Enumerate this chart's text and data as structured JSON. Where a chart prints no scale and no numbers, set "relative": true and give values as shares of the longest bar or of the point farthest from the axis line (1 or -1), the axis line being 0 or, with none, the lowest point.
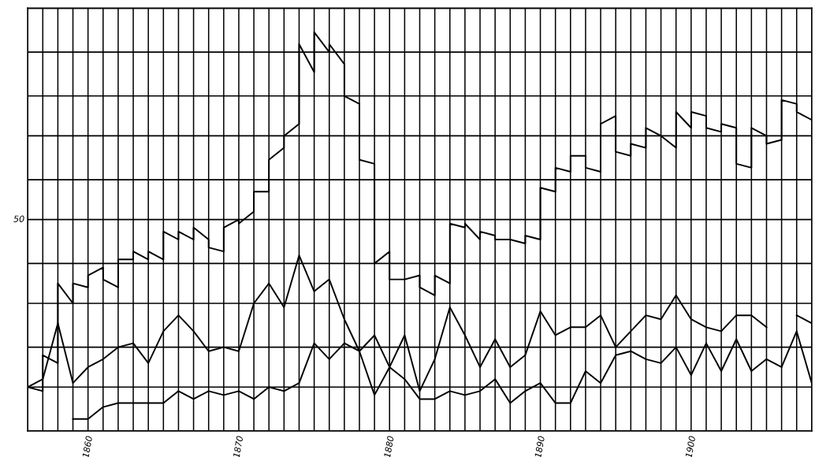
{
  "chart_data": {
    "type": "line",
    "relative": true,
    "grid": "x",
    "xlim": [
      1856,
      1908
    ],
    "annotations": [
      "50"
    ],
    "xticks": [
      {
        "value": 1856,
        "label": null
      },
      {
        "value": 1857,
        "label": null
      },
      {
        "value": 1858,
        "label": null
      },
      {
        "value": 1859,
        "label": null
      },
      1860,
      {
        "value": 1861,
        "label": null
      },
      {
        "value": 1862,
        "label": null
      },
      {
        "value": 1863,
        "label": null
      },
      {
        "value": 1864,
        "label": null
      },
      {
        "value": 1865,
        "label": null
      },
      {
        "value": 1866,
        "label": null
      },
      {
        "value": 1867,
        "label": null
      },
      {
        "value": 1868,
        "label": null
      },
      {
        "value": 1869,
        "label": null
      },
      1870,
      {
        "value": 1871,
        "label": null
      },
      {
        "value": 1872,
        "label": null
      },
      {
        "value": 1873,
        "label": null
      },
      {
        "value": 1874,
        "label": null
      },
      {
        "value": 1875,
        "label": null
      },
      {
        "value": 1876,
        "label": null
      },
      {
        "value": 1877,
        "label": null
      },
      {
        "value": 1878,
        "label": null
      },
      {
        "value": 1879,
        "label": null
      },
      1880,
      {
        "value": 1881,
        "label": null
      },
      {
        "value": 1882,
        "label": null
      },
      {
        "value": 1883,
        "label": null
      },
      {
        "value": 1884,
        "label": null
      },
      {
        "value": 1885,
        "label": null
      },
      {
        "value": 1886,
        "label": null
      },
      {
        "value": 1887,
        "label": null
      },
      {
        "value": 1888,
        "label": null
      },
      {
        "value": 1889,
        "label": null
      },
      1890,
      {
        "value": 1891,
        "label": null
      },
      {
        "value": 1892,
        "label": null
      },
      {
        "value": 1893,
        "label": null
      },
      {
        "value": 1894,
        "label": null
      },
      {
        "value": 1895,
        "label": null
      },
      {
        "value": 1896,
        "label": null
      },
      {
        "value": 1897,
        "label": null
      },
      {
        "value": 1898,
        "label": null
      },
      {
        "value": 1899,
        "label": null
      },
      1900,
      {
        "value": 1901,
        "label": null
      },
      {
        "value": 1902,
        "label": null
      },
      {
        "value": 1903,
        "label": null
      },
      {
        "value": 1904,
        "label": null
      },
      {
        "value": 1905,
        "label": null
      },
      {
        "value": 1906,
        "label": null
      },
      {
        "value": 1907,
        "label": null
      },
      {
        "value": 1908,
        "label": null
      }
    ],
    "ref_lines": [
      {
        "axis": "y",
        "value": 0.11
      },
      {
        "axis": "y",
        "value": 0.21
      },
      {
        "axis": "y",
        "value": 0.32
      },
      {
        "axis": "y",
        "value": 0.42
      },
      {
        "axis": "y",
        "value": 0.53
      },
      {
        "axis": "y",
        "value": 0.63
      },
      {
        "axis": "y",
        "value": 0.74
      },
      {
        "axis": "y",
        "value": 0.84
      },
      {
        "axis": "y",
        "value": 0.95
      },
      {
        "axis": "y",
        "value": 1.06
      }
    ],
    "series": [
      {
        "color": "#000000",
        "x": [
          1856,
          1857,
          1857,
          1858,
          1858,
          1859,
          1859,
          1860,
          1860,
          1861,
          1861,
          1862,
          1862,
          1863,
          1863,
          1864,
          1864,
          1865,
          1865,
          1866,
          1866,
          1867,
          1867,
          1868,
          1868,
          1869,
          1869,
          1870,
          1870,
          1871,
          1871,
          1872,
          1872,
          1873,
          1873,
          1874,
          1874,
          1875,
          1875,
          1876,
          1876,
          1877,
          1877,
          1878,
          1878,
          1879,
          1879,
          1880,
          1880,
          1881,
          1881,
          1882,
          1882,
          1883,
          1883,
          1884,
          1884,
          1885,
          1885,
          1886,
          1886,
          1887,
          1887,
          1888,
          1888,
          1889,
          1889,
          1890,
          1890,
          1891,
          1891,
          1892,
          1892,
          1893,
          1893,
          1894,
          1894,
          1895,
          1895,
          1896,
          1896,
          1897,
          1897,
          1898,
          1898,
          1899,
          1899,
          1900,
          1900,
          1901,
          1901,
          1902,
          1902,
          1903,
          1903,
          1904,
          1904,
          1905,
          1905,
          1906,
          1906,
          1907,
          1907,
          1908
        ],
        "values": [
          0.11,
          0.1,
          0.19,
          0.17,
          0.37,
          0.32,
          0.37,
          0.36,
          0.39,
          0.41,
          0.38,
          0.36,
          0.43,
          0.43,
          0.45,
          0.43,
          0.45,
          0.43,
          0.5,
          0.48,
          0.5,
          0.48,
          0.51,
          0.48,
          0.46,
          0.45,
          0.51,
          0.53,
          0.52,
          0.55,
          0.6,
          0.6,
          0.68,
          0.71,
          0.74,
          0.77,
          0.97,
          0.9,
          1,
          0.95,
          0.97,
          0.92,
          0.84,
          0.82,
          0.68,
          0.67,
          0.42,
          0.45,
          0.38,
          0.38,
          0.38,
          0.39,
          0.36,
          0.34,
          0.39,
          0.37,
          0.52,
          0.51,
          0.52,
          0.48,
          0.5,
          0.49,
          0.48,
          0.48,
          0.48,
          0.47,
          0.49,
          0.48,
          0.61,
          0.6,
          0.66,
          0.65,
          0.69,
          0.69,
          0.66,
          0.65,
          0.77,
          0.79,
          0.7,
          0.69,
          0.72,
          0.71,
          0.76,
          0.74,
          0.74,
          0.71,
          0.8,
          0.76,
          0.8,
          0.79,
          0.76,
          0.75,
          0.77,
          0.76,
          0.67,
          0.66,
          0.76,
          0.74,
          0.72,
          0.73,
          0.83,
          0.82,
          0.8,
          0.78
        ]
      },
      {
        "color": "#000000",
        "x": [
          1856,
          1857,
          1858,
          1859,
          1860,
          1861,
          1862,
          1863,
          1864,
          1865,
          1866,
          1867,
          1868,
          1869,
          1870,
          1871,
          1872,
          1873,
          1874,
          1875,
          1876,
          1877,
          1878,
          1879,
          1880,
          1881,
          1882,
          1883,
          1884,
          1885,
          1886,
          1887,
          1888,
          1889,
          1890,
          1891,
          1892,
          1893,
          1894,
          1895,
          1896,
          1897,
          1898,
          1899,
          1900,
          1901,
          1902,
          1903,
          1904,
          1905,
          1906,
          1907,
          1908
        ],
        "values": [
          0.11,
          0.13,
          0.27,
          0.12,
          0.16,
          0.18,
          0.21,
          0.22,
          0.17,
          0.25,
          0.29,
          0.25,
          0.2,
          0.21,
          0.2,
          0.32,
          0.37,
          0.31,
          0.44,
          0.35,
          0.38,
          0.28,
          0.2,
          0.24,
          0.16,
          0.24,
          0.1,
          0.18,
          0.31,
          0.24,
          0.16,
          0.23,
          0.16,
          0.19,
          0.3,
          0.24,
          0.26,
          0.26,
          0.29,
          0.21,
          0.25,
          0.29,
          0.28,
          0.34,
          0.28,
          0.26,
          0.25,
          0.29,
          0.29,
          0.26,
          null,
          0.29,
          0.27
        ]
      },
      {
        "color": "#000000",
        "x": [
          1859,
          1860,
          1861,
          1862,
          1863,
          1864,
          1865,
          1866,
          1867,
          1868,
          1869,
          1870,
          1871,
          1872,
          1873,
          1874,
          1875,
          1876,
          1877,
          1878,
          1879,
          1880,
          1881,
          1882,
          1883,
          1884,
          1885,
          1886,
          1887,
          1888,
          1889,
          1890,
          1891,
          1892,
          1893,
          1894,
          1895,
          1896,
          1897,
          1898,
          1899,
          1900,
          1901,
          1902,
          1903,
          1904,
          1905,
          1906,
          1907,
          1908
        ],
        "values": [
          0.03,
          0.03,
          0.06,
          0.07,
          0.07,
          0.07,
          0.07,
          0.1,
          0.08,
          0.1,
          0.09,
          0.1,
          0.08,
          0.11,
          0.1,
          0.12,
          0.22,
          0.18,
          0.22,
          0.2,
          0.09,
          0.16,
          0.13,
          0.08,
          0.08,
          0.1,
          0.09,
          0.1,
          0.13,
          0.07,
          0.1,
          0.12,
          0.07,
          0.07,
          0.15,
          0.12,
          0.19,
          0.2,
          0.18,
          0.17,
          0.21,
          0.14,
          0.22,
          0.15,
          0.23,
          0.15,
          0.18,
          0.16,
          0.25,
          0.12
        ]
      }
    ]
  }
}
